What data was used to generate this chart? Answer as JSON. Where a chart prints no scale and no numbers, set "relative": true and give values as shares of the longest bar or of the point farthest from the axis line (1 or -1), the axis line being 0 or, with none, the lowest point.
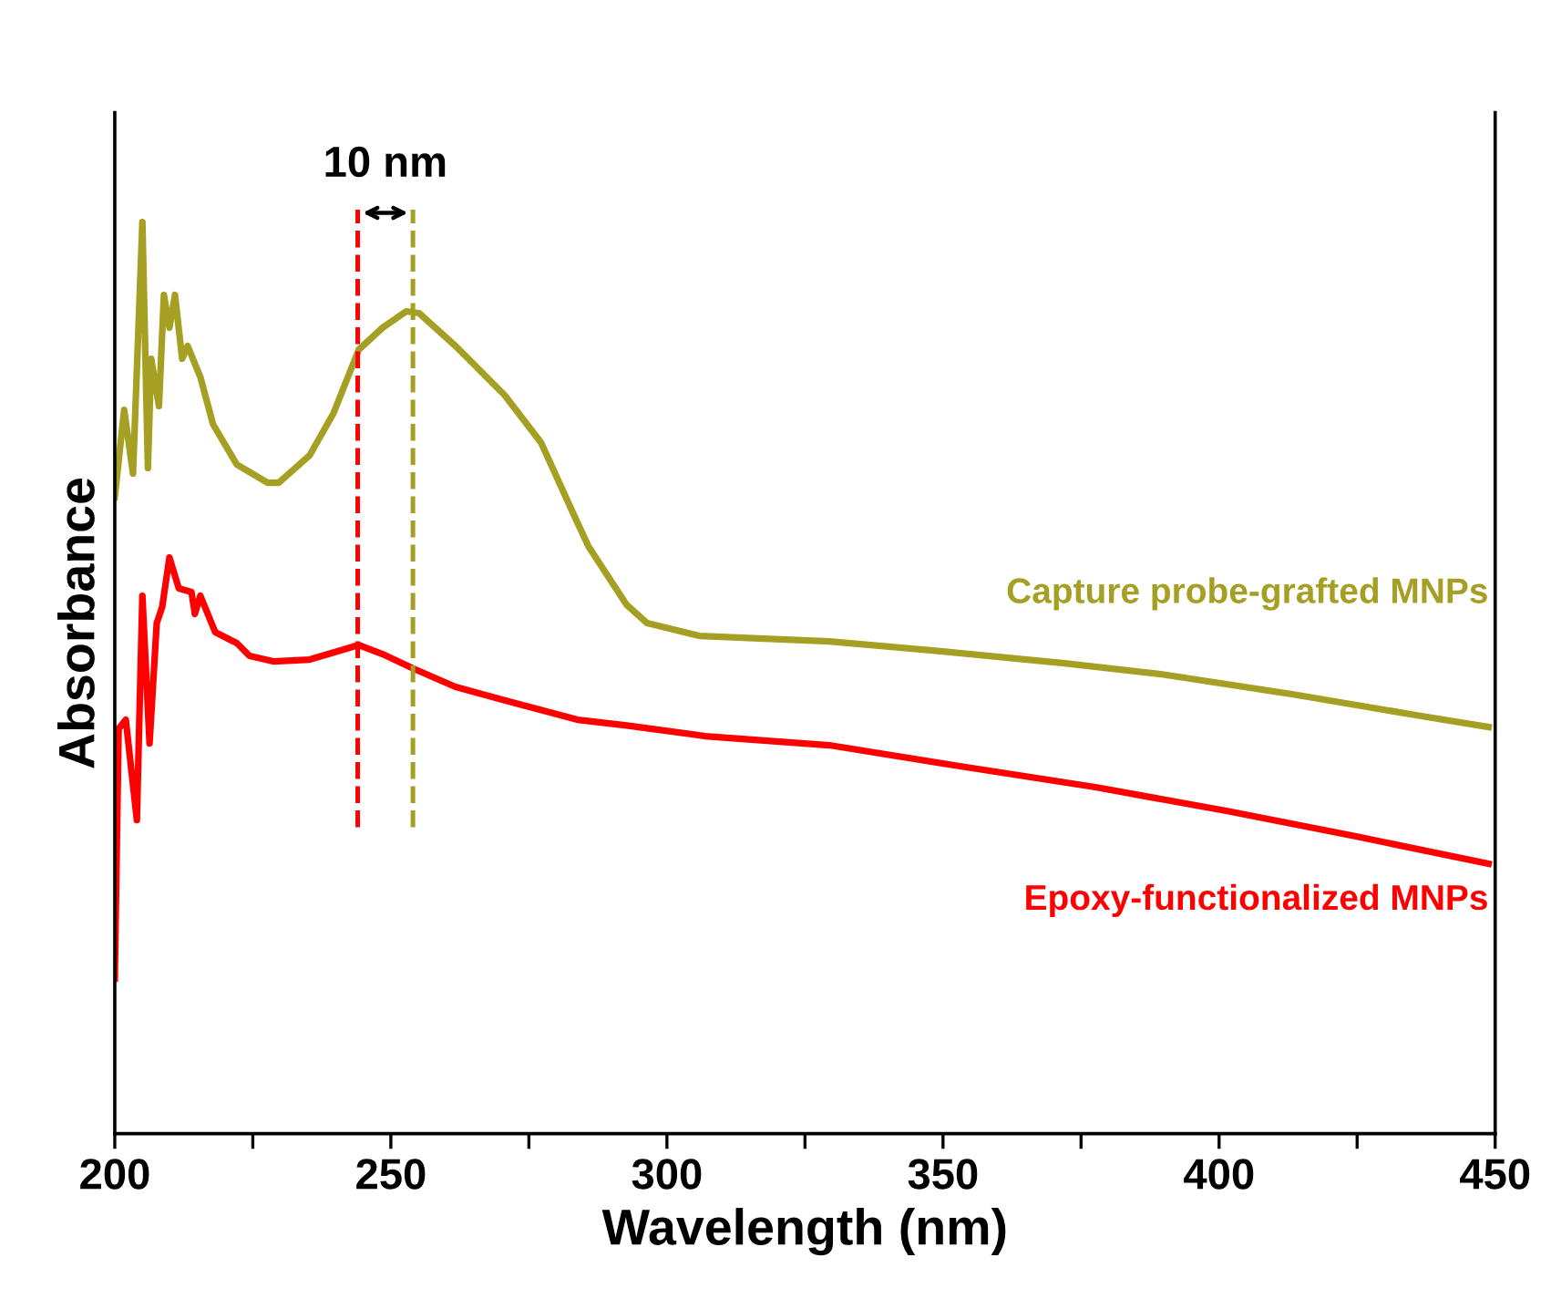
{
  "chart_data": {
    "type": "line",
    "xlabel": "Wavelength (nm)",
    "ylabel": "Absorbance",
    "relative": true,
    "xlim": [
      200,
      450
    ],
    "xticks": [
      200,
      {
        "value": 225,
        "label": null
      },
      250,
      {
        "value": 275,
        "label": null
      },
      300,
      {
        "value": 325,
        "label": null
      },
      350,
      {
        "value": 375,
        "label": null
      },
      400,
      {
        "value": 425,
        "label": null
      },
      450
    ],
    "grid": false,
    "legend": false,
    "line_style": "solid",
    "marker": "none",
    "series": [
      {
        "name": "Capture probe-grafted MNPs",
        "color": "#a5a024",
        "x": [
          200,
          201.7,
          203.3,
          205,
          206,
          206.6,
          208,
          208.9,
          209.9,
          210.9,
          212.2,
          213.2,
          215.5,
          217.8,
          222.1,
          227.7,
          229.7,
          235.3,
          239.6,
          244.2,
          248.5,
          252.8,
          255.1,
          261.7,
          270.6,
          277.2,
          283.8,
          285.8,
          292.7,
          296.4,
          305.9,
          329.4,
          348.2,
          372,
          389.4,
          413.2,
          436.6,
          448.8
        ],
        "values": [
          0.698,
          0.794,
          0.724,
          1.0,
          0.73,
          0.85,
          0.798,
          0.92,
          0.884,
          0.92,
          0.85,
          0.864,
          0.83,
          0.778,
          0.734,
          0.714,
          0.714,
          0.744,
          0.79,
          0.86,
          0.884,
          0.902,
          0.9,
          0.864,
          0.81,
          0.758,
          0.67,
          0.644,
          0.58,
          0.56,
          0.546,
          0.54,
          0.53,
          0.516,
          0.504,
          0.482,
          0.458,
          0.446
        ]
      },
      {
        "name": "Epoxy-functionalized MNPs",
        "color": "#ff0000",
        "x": [
          200,
          200.7,
          202,
          204,
          205,
          206.3,
          207.6,
          208.6,
          209.9,
          211.6,
          213.9,
          214.5,
          215.5,
          218.2,
          222.1,
          224.4,
          228.7,
          235.3,
          240.9,
          244.2,
          248.5,
          254.1,
          261.7,
          272.6,
          283.8,
          292.4,
          306.9,
          329.4,
          354.1,
          377.6,
          401.3,
          424.8,
          448.8
        ],
        "values": [
          0.17,
          0.444,
          0.454,
          0.344,
          0.59,
          0.428,
          0.56,
          0.578,
          0.632,
          0.598,
          0.594,
          0.57,
          0.59,
          0.55,
          0.538,
          0.524,
          0.518,
          0.52,
          0.53,
          0.536,
          0.526,
          0.51,
          0.49,
          0.472,
          0.454,
          0.448,
          0.436,
          0.426,
          0.402,
          0.38,
          0.354,
          0.326,
          0.296
        ]
      }
    ],
    "ref_lines": [
      {
        "axis": "x",
        "value": 244,
        "color": "#ff0000",
        "line_style": "dashed"
      },
      {
        "axis": "x",
        "value": 254,
        "color": "#a5a024",
        "line_style": "dashed"
      }
    ],
    "annotations": [
      "10 nm"
    ]
  }
}
